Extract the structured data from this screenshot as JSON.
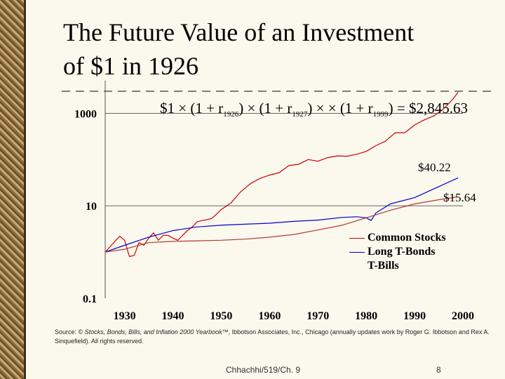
{
  "slide": {
    "title_line1": "The Future Value of an Investment",
    "title_line2": "of $1 in 1926",
    "footer_center": "Chhachhi/519/Ch. 9",
    "page_number": "8",
    "source_prefix": "Source: © ",
    "source_italic": "Stocks, Bonds, Bills, and Inflation 2000 Yearbook™",
    "source_rest": ", Ibbotson Associates, Inc., Chicago (annually updates work by Roger G. Ibbotson and Rex A. Sinquefield). All rights reserved."
  },
  "formula": {
    "start": "$1",
    "times": "×",
    "open": "(1 + r",
    "close": ")",
    "sub1": "1926",
    "sub2": "1927",
    "ellipsis": "",
    "sub3": "1999",
    "result": ") = $2,845.63"
  },
  "colors": {
    "stocks": "#cc0000",
    "bonds": "#0000cc",
    "bills": "#b03a2e",
    "label_stocks": "#b22222",
    "label_bonds": "#000000"
  },
  "chart_data": {
    "type": "line",
    "title": "",
    "xlabel": "",
    "ylabel": "",
    "scale": "log",
    "xlim": [
      1926,
      2000
    ],
    "ylim": [
      0.1,
      3000
    ],
    "y_ticks": [
      1000,
      10,
      0.1
    ],
    "y_tick_labels": [
      "1000",
      "10",
      "0.1"
    ],
    "x_ticks": [
      1930,
      1940,
      1950,
      1960,
      1970,
      1980,
      1990,
      2000
    ],
    "x_tick_labels": [
      "1930",
      "1940",
      "1950",
      "1960",
      "1970",
      "1980",
      "1990",
      "2000"
    ],
    "annotations": [
      "$2,845.63",
      "$40.22",
      "$15.64"
    ],
    "series": [
      {
        "name": "Common Stocks",
        "x": [
          1926,
          1927,
          1928,
          1929,
          1930,
          1931,
          1932,
          1933,
          1934,
          1935,
          1936,
          1937,
          1938,
          1939,
          1940,
          1941,
          1942,
          1943,
          1944,
          1945,
          1946,
          1947,
          1948,
          1949,
          1950,
          1952,
          1954,
          1956,
          1958,
          1960,
          1962,
          1964,
          1966,
          1968,
          1970,
          1972,
          1974,
          1976,
          1978,
          1980,
          1982,
          1984,
          1986,
          1988,
          1990,
          1992,
          1994,
          1996,
          1997,
          1998,
          1999
        ],
        "values": [
          1.0,
          1.3,
          1.7,
          2.2,
          1.8,
          0.8,
          0.85,
          1.6,
          1.4,
          2.0,
          2.6,
          1.8,
          2.3,
          2.3,
          2.0,
          1.8,
          2.3,
          2.9,
          3.5,
          4.5,
          4.8,
          5.0,
          5.3,
          6.5,
          8.3,
          11.5,
          20,
          30,
          39,
          46,
          52,
          74,
          79,
          100,
          92,
          110,
          120,
          118,
          130,
          150,
          200,
          250,
          380,
          380,
          560,
          720,
          880,
          1250,
          1600,
          2080,
          2845.63
        ],
        "color": "#cc0000"
      },
      {
        "name": "Long T-Bonds",
        "x": [
          1926,
          1930,
          1935,
          1940,
          1945,
          1950,
          1955,
          1960,
          1965,
          1970,
          1975,
          1978,
          1980,
          1981,
          1982,
          1985,
          1990,
          1995,
          1999
        ],
        "values": [
          1.0,
          1.4,
          2.1,
          2.9,
          3.5,
          3.8,
          4.0,
          4.2,
          4.6,
          4.9,
          5.6,
          5.8,
          5.5,
          4.8,
          7.0,
          11.0,
          15.0,
          26.0,
          40.22
        ],
        "color": "#0000cc"
      },
      {
        "name": "T-Bills",
        "x": [
          1926,
          1930,
          1935,
          1940,
          1945,
          1950,
          1955,
          1960,
          1965,
          1970,
          1975,
          1980,
          1985,
          1990,
          1995,
          1999
        ],
        "values": [
          1.0,
          1.15,
          1.6,
          1.7,
          1.75,
          1.8,
          1.9,
          2.1,
          2.4,
          3.0,
          3.8,
          5.5,
          8.0,
          11.0,
          13.5,
          15.64
        ],
        "color": "#b03a2e"
      }
    ]
  }
}
